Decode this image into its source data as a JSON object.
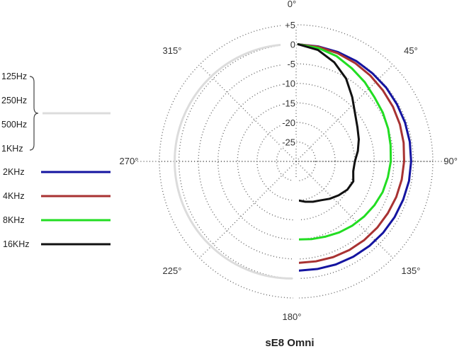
{
  "chart_data": {
    "type": "polar-line",
    "title": "sE8  Omni",
    "angle_labels": [
      "0°",
      "45°",
      "90°",
      "135°",
      "180°",
      "225°",
      "270°",
      "315°"
    ],
    "angles_deg": [
      0,
      45,
      90,
      135,
      180,
      225,
      270,
      315
    ],
    "radial_labels": [
      "+5",
      "0",
      "-5",
      "-10",
      "-15",
      "-20",
      "-25"
    ],
    "radial_values_db": [
      5,
      0,
      -5,
      -10,
      -15,
      -20,
      -25
    ],
    "rlim_db": [
      -30,
      5
    ],
    "grid": true,
    "legend_position": "left",
    "legend": {
      "group_labels": [
        "125Hz",
        "250Hz",
        "500Hz",
        "1KHz"
      ],
      "entries": [
        "2KHz",
        "4KHz",
        "8KHz",
        "16KHz"
      ]
    },
    "series": [
      {
        "name": "125Hz / 250Hz / 500Hz / 1KHz",
        "color": "#dcdcdc",
        "side": "left",
        "theta": [
          180,
          225,
          270,
          315,
          360
        ],
        "r": [
          0,
          0,
          0,
          0,
          0
        ]
      },
      {
        "name": "2KHz",
        "color": "#1414a0",
        "side": "right",
        "theta": [
          0,
          10,
          20,
          30,
          40,
          50,
          60,
          70,
          80,
          90,
          100,
          110,
          120,
          130,
          140,
          150,
          160,
          170,
          180
        ],
        "r": [
          0,
          -0.1,
          -0.2,
          -0.3,
          -0.5,
          -0.6,
          -0.8,
          -0.9,
          -1.0,
          -1.1,
          -1.2,
          -1.4,
          -1.5,
          -1.6,
          -1.7,
          -1.8,
          -1.9,
          -2.0,
          -2.0
        ]
      },
      {
        "name": "4KHz",
        "color": "#a83232",
        "side": "right",
        "theta": [
          0,
          10,
          20,
          30,
          40,
          50,
          60,
          70,
          80,
          90,
          100,
          110,
          120,
          130,
          140,
          150,
          160,
          170,
          180
        ],
        "r": [
          0,
          -0.2,
          -0.5,
          -0.9,
          -1.3,
          -1.7,
          -2.0,
          -2.3,
          -2.6,
          -2.9,
          -3.1,
          -3.3,
          -3.5,
          -3.6,
          -3.7,
          -3.8,
          -3.9,
          -4.0,
          -4.0
        ]
      },
      {
        "name": "8KHz",
        "color": "#22dd22",
        "side": "right",
        "theta": [
          0,
          10,
          20,
          30,
          40,
          50,
          60,
          70,
          80,
          90,
          100,
          110,
          120,
          130,
          140,
          150,
          160,
          170,
          180
        ],
        "r": [
          0,
          -0.5,
          -1.3,
          -2.5,
          -3.5,
          -4.5,
          -5.0,
          -5.5,
          -6.0,
          -6.3,
          -6.7,
          -7.0,
          -7.5,
          -8.0,
          -8.5,
          -9.0,
          -9.5,
          -9.8,
          -10.0
        ]
      },
      {
        "name": "16KHz",
        "color": "#111111",
        "side": "right",
        "theta": [
          0,
          10,
          20,
          30,
          40,
          50,
          60,
          70,
          80,
          90,
          100,
          110,
          120,
          130,
          140,
          150,
          160,
          170,
          180
        ],
        "r": [
          0,
          -1.0,
          -3.0,
          -5.5,
          -8.5,
          -11.0,
          -12.5,
          -13.5,
          -14.5,
          -15.5,
          -15.7,
          -15.0,
          -15.5,
          -16.5,
          -17.5,
          -18.5,
          -19.0,
          -19.5,
          -20.0
        ]
      }
    ]
  }
}
